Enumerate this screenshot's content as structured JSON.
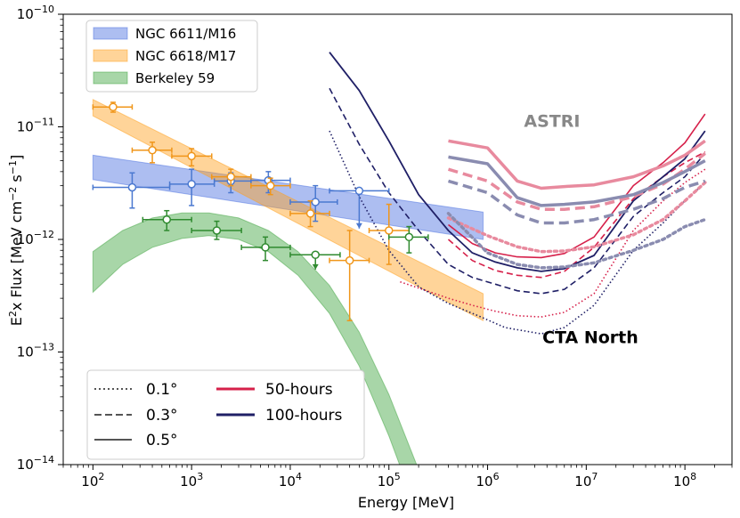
{
  "chart_data": {
    "type": "line",
    "xlabel": "Energy [MeV]",
    "ylabel_main": "E",
    "ylabel_sup": "2",
    "ylabel_mid": "x Flux [MeV cm",
    "ylabel_sup2": "−2",
    "ylabel_mid2": " s",
    "ylabel_sup3": "−1",
    "ylabel_end": "]",
    "xscale": "log",
    "yscale": "log",
    "xlim": [
      50,
      300000000
    ],
    "ylim": [
      1e-14,
      1e-10
    ],
    "x_ticks": [
      {
        "value": 100,
        "base": "10",
        "exp": "2"
      },
      {
        "value": 1000,
        "base": "10",
        "exp": "3"
      },
      {
        "value": 10000,
        "base": "10",
        "exp": "4"
      },
      {
        "value": 100000,
        "base": "10",
        "exp": "5"
      },
      {
        "value": 1000000,
        "base": "10",
        "exp": "6"
      },
      {
        "value": 10000000,
        "base": "10",
        "exp": "7"
      },
      {
        "value": 100000000,
        "base": "10",
        "exp": "8"
      }
    ],
    "y_ticks": [
      {
        "value": 1e-14,
        "base": "10",
        "exp": "−14"
      },
      {
        "value": 1e-13,
        "base": "10",
        "exp": "−13"
      },
      {
        "value": 1e-12,
        "base": "10",
        "exp": "−12"
      },
      {
        "value": 1e-11,
        "base": "10",
        "exp": "−11"
      },
      {
        "value": 1e-10,
        "base": "10",
        "exp": "−10"
      }
    ],
    "annotations": [
      {
        "text": "ASTRI",
        "x": 4500000,
        "y": 1e-11,
        "color": "#888888",
        "bold": true,
        "size": 19
      },
      {
        "text": "CTA North",
        "x": 11000000,
        "y": 1.2e-13,
        "color": "#000000",
        "bold": true,
        "size": 19
      }
    ],
    "bands": [
      {
        "name": "NGC 6611/M16",
        "color": "#4a6fe0",
        "opacity": 0.45,
        "x": [
          100,
          900000
        ],
        "upper": [
          5.6e-12,
          1.75e-12
        ],
        "lower": [
          3.4e-12,
          1e-12
        ],
        "kind": "powerlaw"
      },
      {
        "name": "NGC 6618/M17",
        "color": "#ff9f1c",
        "opacity": 0.45,
        "x": [
          100,
          900000
        ],
        "upper": [
          1.75e-11,
          3.3e-13
        ],
        "lower": [
          1.25e-11,
          1.9e-13
        ],
        "kind": "powerlaw"
      },
      {
        "name": "Berkeley 59",
        "color": "#3fa33f",
        "opacity": 0.45,
        "x": [
          100,
          200,
          400,
          800,
          1500,
          3000,
          6000,
          12000,
          25000,
          50000,
          100000,
          200000
        ],
        "upper": [
          7.8e-13,
          1.2e-12,
          1.55e-12,
          1.72e-12,
          1.72e-12,
          1.55e-12,
          1.2e-12,
          7.8e-13,
          3.9e-13,
          1.5e-13,
          4.2e-14,
          9e-15
        ],
        "lower": [
          3.4e-13,
          6e-13,
          8.5e-13,
          1.02e-12,
          1.08e-12,
          1e-12,
          7.8e-13,
          4.8e-13,
          2.2e-13,
          7.5e-14,
          1.8e-14,
          3.5e-15
        ],
        "kind": "curve"
      }
    ],
    "points": [
      {
        "name": "NGC 6611/M16",
        "color": "#4a78d0",
        "data": [
          {
            "x": 250,
            "y": 2.9e-12,
            "xlo": 100,
            "xhi": 600,
            "ylo": 1.9e-12,
            "yhi": 3.9e-12,
            "ul": false
          },
          {
            "x": 1000,
            "y": 3.1e-12,
            "xlo": 600,
            "xhi": 1700,
            "ylo": 2e-12,
            "yhi": 4.2e-12,
            "ul": false
          },
          {
            "x": 2500,
            "y": 3.3e-12,
            "xlo": 1700,
            "xhi": 4000,
            "ylo": 2.6e-12,
            "yhi": 3.9e-12,
            "ul": false
          },
          {
            "x": 6000,
            "y": 3.35e-12,
            "xlo": 4000,
            "xhi": 10000,
            "ylo": 2.6e-12,
            "yhi": 4e-12,
            "ul": false
          },
          {
            "x": 18000,
            "y": 2.15e-12,
            "xlo": 10000,
            "xhi": 30000,
            "ylo": 1.45e-12,
            "yhi": 3e-12,
            "ul": false
          },
          {
            "x": 50000,
            "y": 2.7e-12,
            "xlo": 25000,
            "xhi": 100000,
            "ylo": 1.25e-12,
            "yhi": 2.7e-12,
            "ul": true
          }
        ]
      },
      {
        "name": "NGC 6618/M17",
        "color": "#f0961a",
        "data": [
          {
            "x": 160,
            "y": 1.5e-11,
            "xlo": 100,
            "xhi": 250,
            "ylo": 1.35e-11,
            "yhi": 1.65e-11,
            "ul": false
          },
          {
            "x": 400,
            "y": 6.2e-12,
            "xlo": 250,
            "xhi": 630,
            "ylo": 4.8e-12,
            "yhi": 7.3e-12,
            "ul": false
          },
          {
            "x": 1000,
            "y": 5.5e-12,
            "xlo": 630,
            "xhi": 1600,
            "ylo": 4.5e-12,
            "yhi": 6.4e-12,
            "ul": false
          },
          {
            "x": 2500,
            "y": 3.6e-12,
            "xlo": 1600,
            "xhi": 4000,
            "ylo": 3e-12,
            "yhi": 4.2e-12,
            "ul": false
          },
          {
            "x": 6300,
            "y": 3e-12,
            "xlo": 4000,
            "xhi": 10000,
            "ylo": 2.5e-12,
            "yhi": 3.5e-12,
            "ul": false
          },
          {
            "x": 16000,
            "y": 1.7e-12,
            "xlo": 10000,
            "xhi": 25000,
            "ylo": 1.3e-12,
            "yhi": 2.2e-12,
            "ul": false
          },
          {
            "x": 40000,
            "y": 6.5e-13,
            "xlo": 25000,
            "xhi": 63000,
            "ylo": 1.9e-13,
            "yhi": 1.2e-12,
            "ul": false
          },
          {
            "x": 100000,
            "y": 1.2e-12,
            "xlo": 63000,
            "xhi": 160000,
            "ylo": 6e-13,
            "yhi": 2.05e-12,
            "ul": false
          }
        ]
      },
      {
        "name": "Berkeley 59",
        "color": "#2f8a2f",
        "data": [
          {
            "x": 560,
            "y": 1.5e-12,
            "xlo": 320,
            "xhi": 1000,
            "ylo": 1.2e-12,
            "yhi": 1.8e-12,
            "ul": false
          },
          {
            "x": 1800,
            "y": 1.2e-12,
            "xlo": 1000,
            "xhi": 3200,
            "ylo": 1e-12,
            "yhi": 1.45e-12,
            "ul": false
          },
          {
            "x": 5600,
            "y": 8.5e-13,
            "xlo": 3200,
            "xhi": 10000,
            "ylo": 6.5e-13,
            "yhi": 1.05e-12,
            "ul": false
          },
          {
            "x": 18000,
            "y": 7.3e-13,
            "xlo": 10000,
            "xhi": 32000,
            "ylo": 5.4e-13,
            "yhi": 7.3e-13,
            "ul": true
          },
          {
            "x": 160000,
            "y": 1.05e-12,
            "xlo": 100000,
            "xhi": 250000,
            "ylo": 7.6e-13,
            "yhi": 1.3e-12,
            "ul": false
          }
        ]
      }
    ],
    "series": [
      {
        "name": "CTA 50h 0.1deg",
        "color": "#d6204a",
        "style": "dotted",
        "width": 1.6,
        "x": [
          130000,
          200000,
          400000,
          700000,
          1200000,
          2000000,
          3500000,
          6000000,
          12000000,
          30000000,
          60000000,
          100000000,
          160000000
        ],
        "y": [
          4.2e-13,
          3.7e-13,
          3e-13,
          2.6e-13,
          2.3e-13,
          2.1e-13,
          2.05e-13,
          2.25e-13,
          3.3e-13,
          1.2e-12,
          2.2e-12,
          3.2e-12,
          4.2e-12
        ]
      },
      {
        "name": "CTA 100h 0.1deg",
        "color": "#1f1f66",
        "style": "dotted",
        "width": 1.6,
        "x": [
          25000,
          50000,
          100000,
          200000,
          400000,
          800000,
          1500000,
          3500000,
          6000000,
          12000000,
          30000000,
          60000000,
          100000000,
          160000000
        ],
        "y": [
          9.2e-12,
          2.4e-12,
          8e-13,
          3.8e-13,
          2.7e-13,
          2.1e-13,
          1.65e-13,
          1.45e-13,
          1.65e-13,
          2.6e-13,
          8e-13,
          1.4e-12,
          2.2e-12,
          3.2e-12
        ]
      },
      {
        "name": "CTA 50h 0.3deg",
        "color": "#d6204a",
        "style": "dashed",
        "width": 1.6,
        "x": [
          400000,
          700000,
          1200000,
          2000000,
          3500000,
          6000000,
          12000000,
          30000000,
          60000000,
          100000000,
          160000000
        ],
        "y": [
          1e-12,
          6.5e-13,
          5.3e-13,
          4.8e-13,
          4.6e-13,
          5.2e-13,
          8.5e-13,
          2.3e-12,
          3.6e-12,
          4.8e-12,
          6e-12
        ]
      },
      {
        "name": "CTA 100h 0.3deg",
        "color": "#1f1f66",
        "style": "dashed",
        "width": 1.6,
        "x": [
          25000,
          50000,
          100000,
          200000,
          400000,
          700000,
          1200000,
          2000000,
          3500000,
          6000000,
          12000000,
          30000000,
          60000000,
          100000000,
          160000000
        ],
        "y": [
          2.2e-11,
          7e-12,
          2.6e-12,
          1.2e-12,
          6e-13,
          4.6e-13,
          4e-13,
          3.5e-13,
          3.3e-13,
          3.6e-13,
          5.6e-13,
          1.6e-12,
          2.6e-12,
          3.6e-12,
          5.8e-12
        ]
      },
      {
        "name": "CTA 50h 0.5deg",
        "color": "#d6204a",
        "style": "solid",
        "width": 1.6,
        "x": [
          400000,
          700000,
          1200000,
          2000000,
          3500000,
          6000000,
          12000000,
          30000000,
          60000000,
          100000000,
          160000000
        ],
        "y": [
          1.35e-12,
          9.2e-13,
          7.6e-13,
          7e-13,
          6.9e-13,
          7.5e-13,
          1.05e-12,
          3e-12,
          4.8e-12,
          7.2e-12,
          1.3e-11
        ]
      },
      {
        "name": "CTA 100h 0.5deg",
        "color": "#1f1f66",
        "style": "solid",
        "width": 1.8,
        "x": [
          25000,
          50000,
          100000,
          200000,
          400000,
          700000,
          1200000,
          2000000,
          3500000,
          6000000,
          12000000,
          30000000,
          60000000,
          100000000,
          160000000
        ],
        "y": [
          4.6e-11,
          2.1e-11,
          7.5e-12,
          2.5e-12,
          1.2e-12,
          7.6e-13,
          6.3e-13,
          5.6e-13,
          5.2e-13,
          5.5e-13,
          7.2e-13,
          2.2e-12,
          3.6e-12,
          5.2e-12,
          9.2e-12
        ]
      },
      {
        "name": "ASTRI 50h 0.1deg",
        "color": "#e88a9e",
        "style": "dotted",
        "width": 3.5,
        "x": [
          400000,
          1000000,
          2000000,
          3500000,
          6000000,
          12000000,
          30000000,
          60000000,
          100000000,
          160000000
        ],
        "y": [
          1.55e-12,
          1.08e-12,
          8.6e-13,
          7.8e-13,
          7.9e-13,
          8.6e-13,
          1.1e-12,
          1.5e-12,
          2.2e-12,
          3.2e-12
        ]
      },
      {
        "name": "ASTRI 100h 0.1deg",
        "color": "#8a8cb0",
        "style": "dotted",
        "width": 3.5,
        "x": [
          400000,
          1000000,
          2000000,
          3500000,
          6000000,
          12000000,
          30000000,
          60000000,
          100000000,
          160000000
        ],
        "y": [
          1.7e-12,
          7.6e-13,
          6e-13,
          5.6e-13,
          5.7e-13,
          6.2e-13,
          8e-13,
          1e-12,
          1.3e-12,
          1.5e-12
        ]
      },
      {
        "name": "ASTRI 50h 0.3deg",
        "color": "#e88a9e",
        "style": "dashed",
        "width": 3.5,
        "x": [
          400000,
          1000000,
          2000000,
          3500000,
          6000000,
          12000000,
          30000000,
          60000000,
          100000000,
          160000000
        ],
        "y": [
          4.2e-12,
          3.3e-12,
          2.15e-12,
          1.85e-12,
          1.85e-12,
          1.95e-12,
          2.4e-12,
          3.1e-12,
          4.2e-12,
          5.8e-12
        ]
      },
      {
        "name": "ASTRI 100h 0.3deg",
        "color": "#8a8cb0",
        "style": "dashed",
        "width": 3.5,
        "x": [
          400000,
          1000000,
          2000000,
          3500000,
          6000000,
          12000000,
          30000000,
          60000000,
          100000000,
          160000000
        ],
        "y": [
          3.3e-12,
          2.6e-12,
          1.65e-12,
          1.4e-12,
          1.4e-12,
          1.5e-12,
          1.85e-12,
          2.3e-12,
          2.9e-12,
          3.3e-12
        ]
      },
      {
        "name": "ASTRI 50h 0.5deg",
        "color": "#e88a9e",
        "style": "solid",
        "width": 3.5,
        "x": [
          400000,
          1000000,
          2000000,
          3500000,
          6000000,
          12000000,
          30000000,
          60000000,
          100000000,
          160000000
        ],
        "y": [
          7.5e-12,
          6.5e-12,
          3.3e-12,
          2.85e-12,
          2.95e-12,
          3.05e-12,
          3.6e-12,
          4.5e-12,
          5.6e-12,
          7.5e-12
        ]
      },
      {
        "name": "ASTRI 100h 0.5deg",
        "color": "#8a8cb0",
        "style": "solid",
        "width": 3.5,
        "x": [
          400000,
          1000000,
          2000000,
          3500000,
          6000000,
          12000000,
          30000000,
          60000000,
          100000000,
          160000000
        ],
        "y": [
          5.4e-12,
          4.7e-12,
          2.35e-12,
          2e-12,
          2.05e-12,
          2.15e-12,
          2.5e-12,
          3.2e-12,
          4e-12,
          5e-12
        ]
      }
    ],
    "legend_sources": [
      {
        "label": "NGC 6611/M16",
        "color": "#4a6fe0"
      },
      {
        "label": "NGC 6618/M17",
        "color": "#ff9f1c"
      },
      {
        "label": "Berkeley 59",
        "color": "#3fa33f"
      }
    ],
    "legend_styles": [
      {
        "label": "0.1°",
        "style": "dotted"
      },
      {
        "label": "0.3°",
        "style": "dashed"
      },
      {
        "label": "0.5°",
        "style": "solid"
      }
    ],
    "legend_hours": [
      {
        "label": "50-hours",
        "color": "#d6204a"
      },
      {
        "label": "100-hours",
        "color": "#1f1f66"
      }
    ],
    "legend_placement": [
      "top-left",
      "bottom-left"
    ]
  }
}
